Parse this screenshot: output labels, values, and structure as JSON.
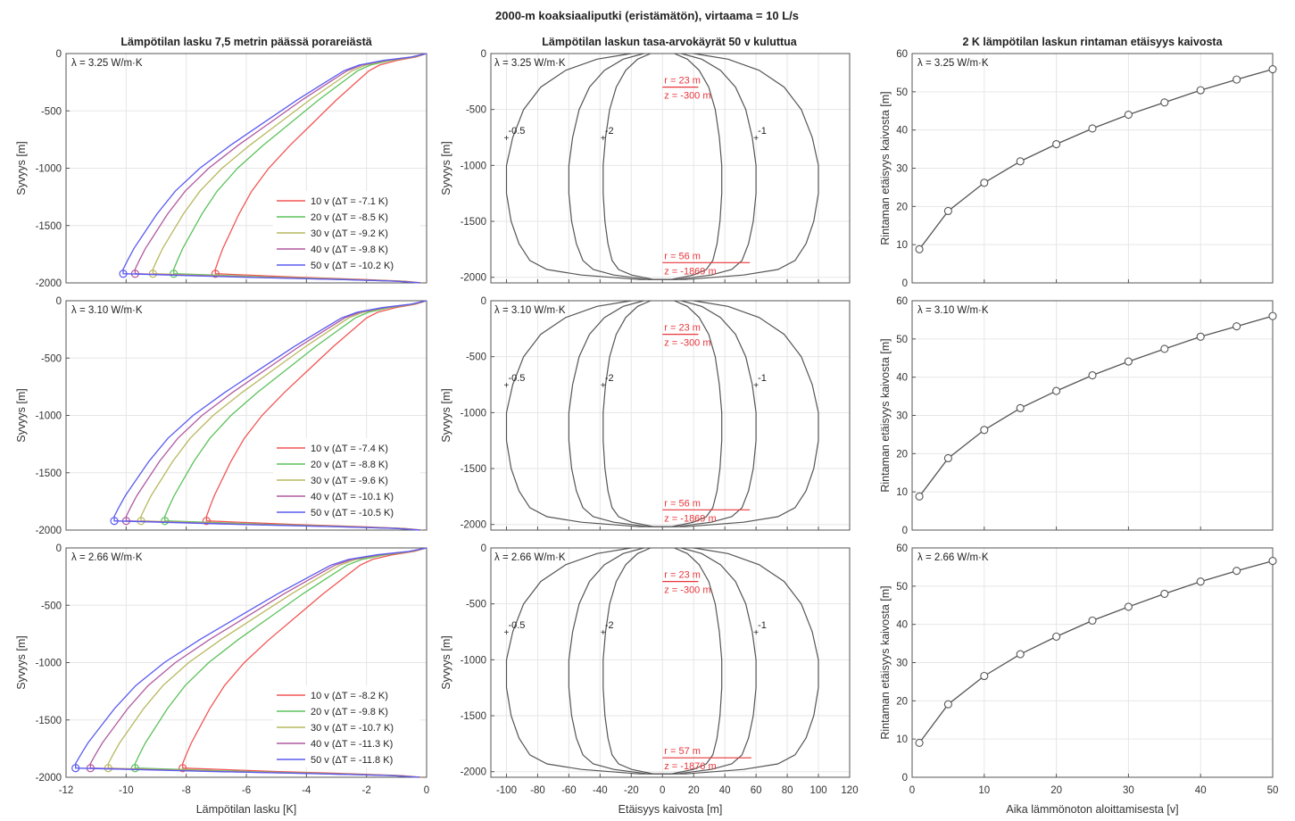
{
  "figure": {
    "suptitle": "2000-m koaksiaaliputki (eristämätön), virtaama = 10 L/s",
    "colors": {
      "axis": "#555555",
      "grid": "#e6e6e6",
      "curve": "#555555",
      "annotation": "#e8363b",
      "years": [
        "#f25555",
        "#5cc25c",
        "#b8b860",
        "#b05aa0",
        "#5a5af0"
      ]
    }
  },
  "chart_data": [
    {
      "id": "temp-drop",
      "type": "line",
      "title": "Lämpötilan lasku 7,5 metrin päässä porareiästä",
      "xlabel": "Lämpötilan lasku [K]",
      "ylabel": "Syvyys [m]",
      "xlim": [
        -12,
        0
      ],
      "ylim": [
        -2000,
        0
      ],
      "xticks": [
        -12,
        -10,
        -8,
        -6,
        -4,
        -2,
        0
      ],
      "yticks": [
        -2000,
        -1500,
        -1000,
        -500,
        0
      ],
      "legend_position": "lower-right",
      "depth_profile": {
        "z": [
          0,
          -30,
          -60,
          -100,
          -150,
          -250,
          -400,
          -600,
          -800,
          -1000,
          -1200,
          -1400,
          -1600,
          -1700,
          -1800,
          -1880,
          -1920,
          -1950,
          -1970,
          -1985,
          -2000
        ],
        "shape": [
          0,
          0.05,
          0.14,
          0.22,
          0.27,
          0.33,
          0.42,
          0.53,
          0.64,
          0.74,
          0.82,
          0.88,
          0.93,
          0.955,
          0.975,
          0.99,
          0.99,
          0.6,
          0.3,
          0.1,
          0.02
        ],
        "marker_depth": -1920
      },
      "panels": [
        {
          "label": "λ = 3.25 W/m·K",
          "series": [
            {
              "name": "10 v (ΔT = -7.1 K)",
              "min": -7.1
            },
            {
              "name": "20 v (ΔT = -8.5 K)",
              "min": -8.5
            },
            {
              "name": "30 v (ΔT = -9.2 K)",
              "min": -9.2
            },
            {
              "name": "40 v (ΔT = -9.8 K)",
              "min": -9.8
            },
            {
              "name": "50 v (ΔT = -10.2 K)",
              "min": -10.2
            }
          ]
        },
        {
          "label": "λ = 3.10 W/m·K",
          "series": [
            {
              "name": "10 v (ΔT = -7.4 K)",
              "min": -7.4
            },
            {
              "name": "20 v (ΔT = -8.8 K)",
              "min": -8.8
            },
            {
              "name": "30 v (ΔT = -9.6 K)",
              "min": -9.6
            },
            {
              "name": "40 v (ΔT = -10.1 K)",
              "min": -10.1
            },
            {
              "name": "50 v (ΔT = -10.5 K)",
              "min": -10.5
            }
          ]
        },
        {
          "label": "λ = 2.66 W/m·K",
          "series": [
            {
              "name": "10 v (ΔT = -8.2 K)",
              "min": -8.2
            },
            {
              "name": "20 v (ΔT = -9.8 K)",
              "min": -9.8
            },
            {
              "name": "30 v (ΔT = -10.7 K)",
              "min": -10.7
            },
            {
              "name": "40 v (ΔT = -11.3 K)",
              "min": -11.3
            },
            {
              "name": "50 v (ΔT = -11.8 K)",
              "min": -11.8
            }
          ]
        }
      ]
    },
    {
      "id": "contours",
      "type": "line",
      "title": "Lämpötilan laskun tasa-arvokäyrät 50 v kuluttua",
      "xlabel": "Etäisyys kaivosta [m]",
      "ylabel": "Syvyys [m]",
      "xlim": [
        -110,
        120
      ],
      "ylim": [
        -2050,
        0
      ],
      "xticks": [
        -100,
        -80,
        -60,
        -40,
        -20,
        0,
        20,
        40,
        60,
        80,
        100,
        120
      ],
      "yticks": [
        -2000,
        -1500,
        -1000,
        -500,
        0
      ],
      "contour_profile": {
        "z": [
          0,
          -50,
          -150,
          -300,
          -500,
          -750,
          -1000,
          -1250,
          -1500,
          -1700,
          -1850,
          -1930,
          -1980,
          -2020
        ],
        "shape": [
          0.2,
          0.42,
          0.62,
          0.78,
          0.89,
          0.96,
          1.0,
          1.0,
          0.97,
          0.92,
          0.85,
          0.74,
          0.52,
          0.15
        ]
      },
      "panels": [
        {
          "label": "λ = 3.25 W/m·K",
          "contours": [
            {
              "level": "-0.5",
              "r": 100
            },
            {
              "level": "-1",
              "r": 60
            },
            {
              "level": "-2",
              "r": 38
            }
          ],
          "annotations": [
            {
              "r_text": "r = 23 m",
              "z_text": "z = -300 m",
              "r": 23,
              "z": -300
            },
            {
              "r_text": "r = 56 m",
              "z_text": "z = -1869 m",
              "r": 56,
              "z": -1869
            }
          ]
        },
        {
          "label": "λ = 3.10 W/m·K",
          "contours": [
            {
              "level": "-0.5",
              "r": 100
            },
            {
              "level": "-1",
              "r": 60
            },
            {
              "level": "-2",
              "r": 38
            }
          ],
          "annotations": [
            {
              "r_text": "r = 23 m",
              "z_text": "z = -300 m",
              "r": 23,
              "z": -300
            },
            {
              "r_text": "r = 56 m",
              "z_text": "z = -1869 m",
              "r": 56,
              "z": -1869
            }
          ]
        },
        {
          "label": "λ = 2.66 W/m·K",
          "contours": [
            {
              "level": "-0.5",
              "r": 100
            },
            {
              "level": "-1",
              "r": 60
            },
            {
              "level": "-2",
              "r": 38
            }
          ],
          "annotations": [
            {
              "r_text": "r = 23 m",
              "z_text": "z = -300 m",
              "r": 23,
              "z": -300
            },
            {
              "r_text": "r = 57 m",
              "z_text": "z = -1876 m",
              "r": 57,
              "z": -1876
            }
          ]
        }
      ]
    },
    {
      "id": "front-distance",
      "type": "line",
      "title": "2 K lämpötilan laskun rintaman etäisyys kaivosta",
      "xlabel": "Aika lämmönoton aloittamisesta [v]",
      "ylabel": "Rintaman etäisyys kaivosta [m]",
      "xlim": [
        0,
        50
      ],
      "ylim": [
        0,
        60
      ],
      "xticks": [
        0,
        10,
        20,
        30,
        40,
        50
      ],
      "yticks": [
        0,
        10,
        20,
        30,
        40,
        50,
        60
      ],
      "panels": [
        {
          "label": "λ = 3.25 W/m·K",
          "x": [
            1,
            5,
            10,
            15,
            20,
            25,
            30,
            35,
            40,
            45,
            50
          ],
          "y": [
            8.8,
            18.8,
            26.2,
            31.8,
            36.3,
            40.4,
            44.0,
            47.2,
            50.4,
            53.2,
            55.9
          ]
        },
        {
          "label": "λ = 3.10 W/m·K",
          "x": [
            1,
            5,
            10,
            15,
            20,
            25,
            30,
            35,
            40,
            45,
            50
          ],
          "y": [
            8.8,
            18.8,
            26.2,
            31.9,
            36.4,
            40.5,
            44.1,
            47.4,
            50.6,
            53.3,
            56.0
          ]
        },
        {
          "label": "λ = 2.66 W/m·K",
          "x": [
            1,
            5,
            10,
            15,
            20,
            25,
            30,
            35,
            40,
            45,
            50
          ],
          "y": [
            9.0,
            19.1,
            26.5,
            32.2,
            36.8,
            41.0,
            44.6,
            48.0,
            51.2,
            54.0,
            56.6
          ]
        }
      ]
    }
  ]
}
